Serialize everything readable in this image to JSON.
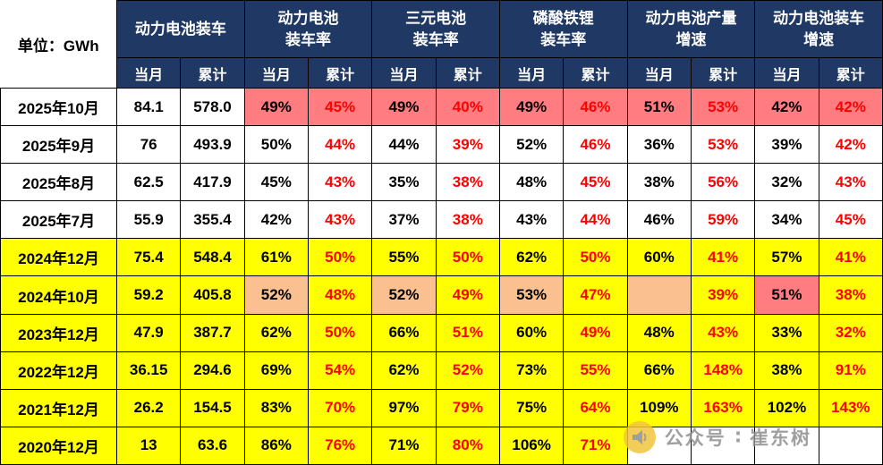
{
  "unit_label": "单位：GWh",
  "header": {
    "groups": [
      {
        "label": "动力电池装车"
      },
      {
        "label": "动力电池\n装车率"
      },
      {
        "label": "三元电池\n装车率"
      },
      {
        "label": "磷酸铁锂\n装车率"
      },
      {
        "label": "动力电池产量\n增速"
      },
      {
        "label": "动力电池装车\n增速"
      }
    ],
    "subcolumns": [
      "当月",
      "累计"
    ]
  },
  "colors": {
    "header_bg": "#1F3864",
    "highlight_yellow": "#FFFF00",
    "highlight_orange": "#FAC08F",
    "highlight_pink": "#FF7C80",
    "cumulative_red": "#FF0000"
  },
  "chart_data": {
    "type": "table",
    "title": "",
    "unit": "GWh",
    "column_groups": [
      "动力电池装车",
      "动力电池装车率",
      "三元电池装车率",
      "磷酸铁锂装车率",
      "动力电池产量增速",
      "动力电池装车增速"
    ],
    "subcolumns": [
      "当月",
      "累计"
    ],
    "rows": [
      {
        "period": "2025年10月",
        "values": [
          "84.1",
          "578.0",
          "49%",
          "45%",
          "49%",
          "40%",
          "49%",
          "46%",
          "51%",
          "53%",
          "42%",
          "42%"
        ]
      },
      {
        "period": "2025年9月",
        "values": [
          "76",
          "493.9",
          "50%",
          "44%",
          "44%",
          "39%",
          "52%",
          "46%",
          "36%",
          "53%",
          "39%",
          "42%"
        ]
      },
      {
        "period": "2025年8月",
        "values": [
          "62.5",
          "417.9",
          "45%",
          "43%",
          "35%",
          "38%",
          "48%",
          "45%",
          "38%",
          "56%",
          "32%",
          "43%"
        ]
      },
      {
        "period": "2025年7月",
        "values": [
          "55.9",
          "355.4",
          "42%",
          "43%",
          "37%",
          "38%",
          "43%",
          "44%",
          "46%",
          "59%",
          "34%",
          "45%"
        ]
      },
      {
        "period": "2024年12月",
        "values": [
          "75.4",
          "548.4",
          "61%",
          "50%",
          "55%",
          "50%",
          "62%",
          "50%",
          "60%",
          "41%",
          "57%",
          "41%"
        ]
      },
      {
        "period": "2024年10月",
        "values": [
          "59.2",
          "405.8",
          "52%",
          "48%",
          "52%",
          "49%",
          "53%",
          "47%",
          "",
          "39%",
          "51%",
          "38%"
        ]
      },
      {
        "period": "2023年12月",
        "values": [
          "47.9",
          "387.7",
          "62%",
          "50%",
          "66%",
          "51%",
          "60%",
          "49%",
          "48%",
          "43%",
          "33%",
          "32%"
        ]
      },
      {
        "period": "2022年12月",
        "values": [
          "36.15",
          "294.6",
          "69%",
          "54%",
          "62%",
          "52%",
          "73%",
          "55%",
          "66%",
          "148%",
          "38%",
          "91%"
        ]
      },
      {
        "period": "2021年12月",
        "values": [
          "26.2",
          "154.5",
          "83%",
          "70%",
          "97%",
          "79%",
          "75%",
          "64%",
          "109%",
          "163%",
          "102%",
          "143%"
        ]
      },
      {
        "period": "2020年12月",
        "values": [
          "13",
          "63.6",
          "86%",
          "76%",
          "71%",
          "80%",
          "106%",
          "71%",
          "",
          "",
          "",
          ""
        ]
      }
    ]
  },
  "row_styles": [
    {
      "label_bg": "white",
      "cell_bg": [
        "white",
        "white",
        "pink",
        "pink",
        "pink",
        "pink",
        "pink",
        "pink",
        "pink",
        "pink",
        "pink",
        "pink"
      ]
    },
    {
      "label_bg": "white",
      "cell_bg": [
        "white",
        "white",
        "white",
        "white",
        "white",
        "white",
        "white",
        "white",
        "white",
        "white",
        "white",
        "white"
      ]
    },
    {
      "label_bg": "white",
      "cell_bg": [
        "white",
        "white",
        "white",
        "white",
        "white",
        "white",
        "white",
        "white",
        "white",
        "white",
        "white",
        "white"
      ]
    },
    {
      "label_bg": "white",
      "cell_bg": [
        "white",
        "white",
        "white",
        "white",
        "white",
        "white",
        "white",
        "white",
        "white",
        "white",
        "white",
        "white"
      ]
    },
    {
      "label_bg": "yellow",
      "cell_bg": [
        "yellow",
        "yellow",
        "yellow",
        "yellow",
        "yellow",
        "yellow",
        "yellow",
        "yellow",
        "yellow",
        "yellow",
        "yellow",
        "yellow"
      ]
    },
    {
      "label_bg": "yellow",
      "cell_bg": [
        "yellow",
        "yellow",
        "orange",
        "yellow",
        "orange",
        "yellow",
        "orange",
        "yellow",
        "orange",
        "yellow",
        "pink",
        "yellow"
      ]
    },
    {
      "label_bg": "yellow",
      "cell_bg": [
        "yellow",
        "yellow",
        "yellow",
        "yellow",
        "yellow",
        "yellow",
        "yellow",
        "yellow",
        "yellow",
        "yellow",
        "yellow",
        "yellow"
      ]
    },
    {
      "label_bg": "yellow",
      "cell_bg": [
        "yellow",
        "yellow",
        "yellow",
        "yellow",
        "yellow",
        "yellow",
        "yellow",
        "yellow",
        "yellow",
        "yellow",
        "yellow",
        "yellow"
      ]
    },
    {
      "label_bg": "yellow",
      "cell_bg": [
        "yellow",
        "yellow",
        "yellow",
        "yellow",
        "yellow",
        "yellow",
        "yellow",
        "yellow",
        "yellow",
        "yellow",
        "yellow",
        "yellow"
      ]
    },
    {
      "label_bg": "yellow",
      "cell_bg": [
        "yellow",
        "yellow",
        "yellow",
        "yellow",
        "yellow",
        "yellow",
        "yellow",
        "yellow",
        "white",
        "white",
        "white",
        "white"
      ]
    }
  ],
  "watermark": {
    "account_label": "公众号",
    "separator": "∶",
    "account_name": "崔东树"
  }
}
